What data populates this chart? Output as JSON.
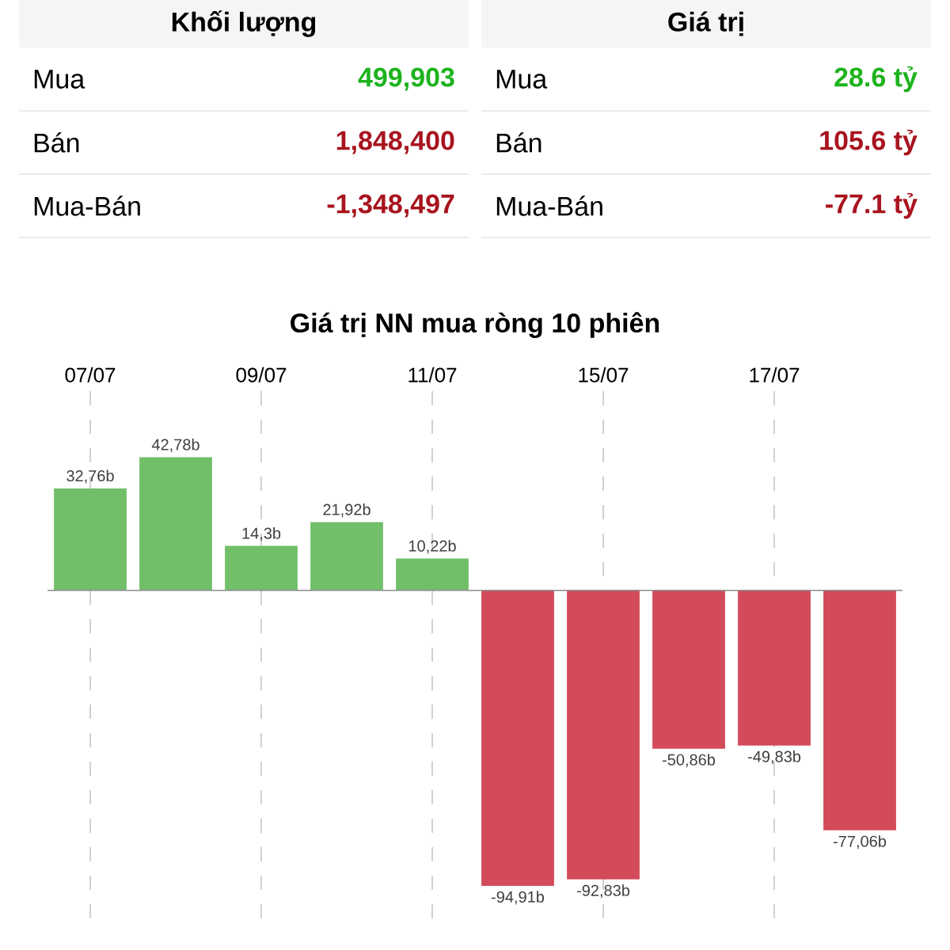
{
  "chart_data": [
    {
      "type": "other",
      "title": "Khối lượng",
      "annotations": [
        "Mua",
        "499,903",
        "Bán",
        "1,848,400",
        "Mua-Bán",
        "-1,348,497"
      ]
    },
    {
      "type": "other",
      "title": "Giá trị",
      "annotations": [
        "Mua",
        "28.6 tỷ",
        "Bán",
        "105.6 tỷ",
        "Mua-Bán",
        "-77.1 tỷ"
      ]
    },
    {
      "type": "bar",
      "title": "Giá trị NN mua ròng 10 phiên",
      "categories": [
        "07/07",
        null,
        "09/07",
        null,
        "11/07",
        null,
        "15/07",
        null,
        "17/07",
        null
      ],
      "values": [
        32.76,
        42.78,
        14.3,
        21.92,
        10.22,
        -94.91,
        -92.83,
        -50.86,
        -49.83,
        -77.06
      ],
      "value_labels": [
        "32,76b",
        "42,78b",
        "14,3b",
        "21,92b",
        "10,22b",
        "-94,91b",
        "-92,83b",
        "-50,86b",
        "-49,83b",
        "-77,06b"
      ],
      "colors": [
        "#72bf6a",
        "#72bf6a",
        "#72bf6a",
        "#72bf6a",
        "#72bf6a",
        "#d34a5a",
        "#d34a5a",
        "#d34a5a",
        "#d34a5a",
        "#d34a5a"
      ],
      "grid": "x"
    }
  ]
}
